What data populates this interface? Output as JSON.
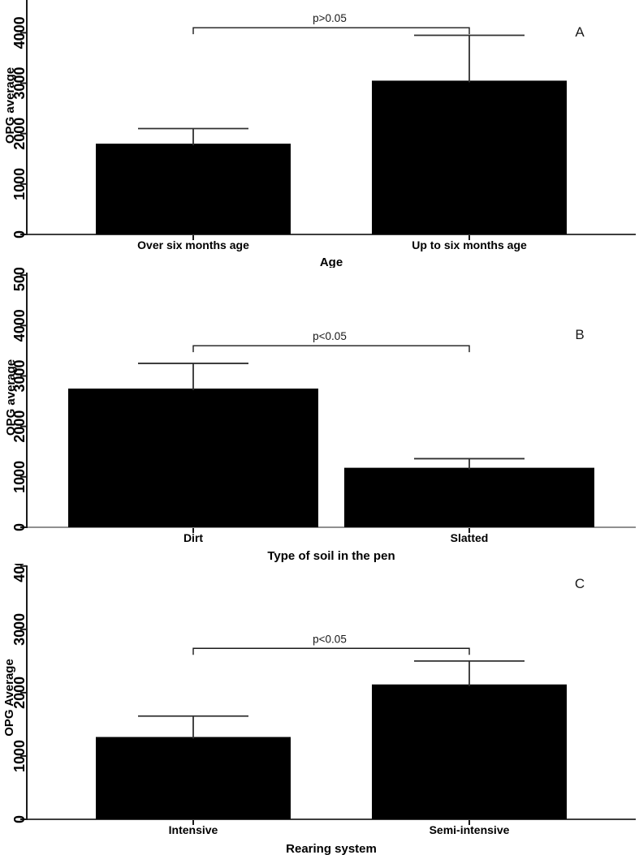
{
  "colors": {
    "bar": "#000000",
    "axis": "#1a1a1a",
    "error_bar": "#303030",
    "bracket": "#1a1a1a",
    "background": "#ffffff"
  },
  "chart_data": [
    {
      "type": "bar",
      "panel_label": "A",
      "categories": [
        "Over six months age",
        "Up to six months age"
      ],
      "values": [
        1800,
        3050
      ],
      "error_plus": [
        300,
        900
      ],
      "significance": {
        "text": "p>0.05",
        "from_category_index": 0,
        "to_category_index": 1,
        "y_value": 4100
      },
      "xlabel": "Age",
      "ylabel": "OPG average",
      "ylim": [
        0,
        4650
      ],
      "yticks": [
        0,
        1000,
        2000,
        3000,
        4000
      ],
      "grid": false,
      "legend": null,
      "x_axis_color": "#3e3e3e"
    },
    {
      "type": "bar",
      "panel_label": "B",
      "categories": [
        "Dirt",
        "Slatted"
      ],
      "values": [
        2750,
        1180
      ],
      "error_plus": [
        500,
        180
      ],
      "significance": {
        "text": "p<0.05",
        "from_category_index": 0,
        "to_category_index": 1,
        "y_value": 3600
      },
      "xlabel": "Type of soil in the pen",
      "ylabel": "OPG average",
      "ylim": [
        0,
        5050
      ],
      "yticks": [
        0,
        1000,
        2000,
        3000,
        4000,
        5000
      ],
      "grid": false,
      "legend": null,
      "x_axis_color": "#8f8f8f"
    },
    {
      "type": "bar",
      "panel_label": "C",
      "categories": [
        "Intensive",
        "Semi-intensive"
      ],
      "values": [
        1300,
        2130
      ],
      "error_plus": [
        330,
        370
      ],
      "significance": {
        "text": "p<0.05",
        "from_category_index": 0,
        "to_category_index": 1,
        "y_value": 2700
      },
      "xlabel": "Rearing system",
      "ylabel": "OPG Average",
      "ylim": [
        0,
        4010
      ],
      "yticks": [
        0,
        1000,
        2000,
        3000,
        4000
      ],
      "grid": false,
      "legend": null,
      "x_axis_color": "#3e3e3e"
    }
  ]
}
